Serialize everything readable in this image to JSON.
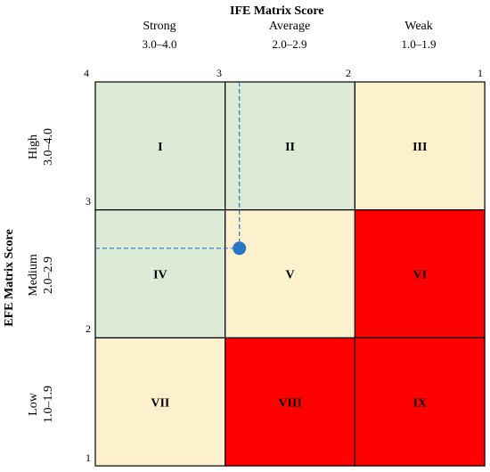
{
  "x_axis": {
    "title": "IFE Matrix Score",
    "columns": [
      {
        "name": "Strong",
        "range": "3.0–4.0"
      },
      {
        "name": "Average",
        "range": "2.0–2.9"
      },
      {
        "name": "Weak",
        "range": "1.0–1.9"
      }
    ],
    "ticks": [
      "4",
      "3",
      "2",
      "1"
    ]
  },
  "y_axis": {
    "title": "EFE Matrix Score",
    "rows": [
      {
        "name": "High",
        "range": "3.0–4.0"
      },
      {
        "name": "Medium",
        "range": "2.0–2.9"
      },
      {
        "name": "Low",
        "range": "1.0–1.9"
      }
    ],
    "ticks": [
      "3",
      "2",
      "1"
    ]
  },
  "cells": [
    [
      "I",
      "II",
      "III"
    ],
    [
      "IV",
      "V",
      "VI"
    ],
    [
      "VII",
      "VIII",
      "IX"
    ]
  ],
  "cell_colors": [
    [
      "#dcebd5",
      "#dcebd5",
      "#fdf0cd"
    ],
    [
      "#dcebd5",
      "#fdf0cd",
      "#ff0000"
    ],
    [
      "#fdf0cd",
      "#ff0000",
      "#ff0000"
    ]
  ],
  "marker": {
    "ife": 2.89,
    "efe": 2.7,
    "color": "#2878c8"
  }
}
